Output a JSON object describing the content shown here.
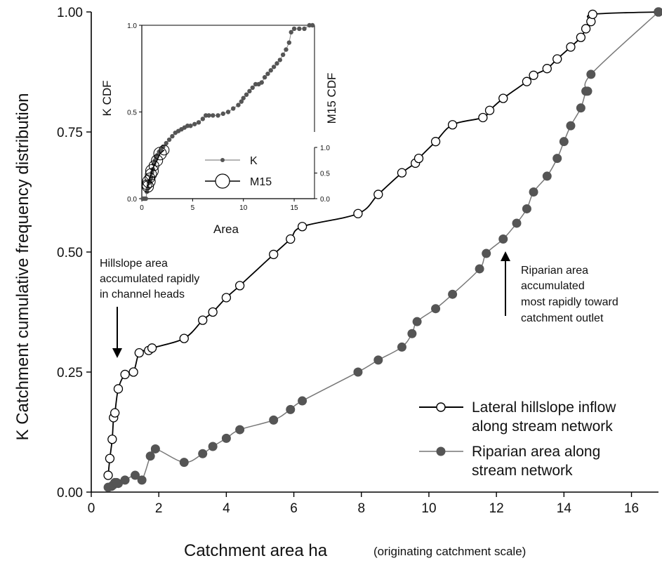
{
  "chart_data": {
    "type": "line",
    "xlabel": "Catchment area ha",
    "xlabel_note": "(originating catchment scale)",
    "ylabel": "K Catchment cumulative frequency distribution",
    "xlim": [
      0,
      16.8
    ],
    "ylim": [
      0,
      1
    ],
    "x_ticks": [
      "0",
      "2",
      "4",
      "6",
      "8",
      "10",
      "12",
      "14",
      "16"
    ],
    "y_ticks": [
      "0.00",
      "0.25",
      "0.50",
      "0.75",
      "1.00"
    ],
    "legend_position": "bottom-right",
    "series": [
      {
        "name": "Lateral hillslope inflow along stream network",
        "legend_lines": [
          "Lateral hillslope inflow",
          "along stream network"
        ],
        "marker": "open-circle",
        "color": "#000000",
        "x": [
          0.5,
          0.55,
          0.62,
          0.66,
          0.7,
          0.8,
          1.0,
          1.25,
          1.42,
          1.7,
          1.8,
          2.75,
          3.3,
          3.6,
          4.0,
          4.4,
          5.4,
          5.9,
          6.25,
          7.9,
          8.5,
          9.2,
          9.6,
          9.7,
          10.2,
          10.7,
          11.6,
          11.8,
          12.2,
          12.9,
          13.1,
          13.5,
          13.8,
          14.2,
          14.5,
          14.65,
          14.8
        ],
        "y": [
          0.035,
          0.07,
          0.11,
          0.155,
          0.165,
          0.215,
          0.245,
          0.25,
          0.29,
          0.295,
          0.3,
          0.32,
          0.358,
          0.375,
          0.405,
          0.43,
          0.495,
          0.527,
          0.553,
          0.58,
          0.62,
          0.665,
          0.685,
          0.695,
          0.73,
          0.765,
          0.78,
          0.795,
          0.82,
          0.855,
          0.868,
          0.882,
          0.902,
          0.927,
          0.947,
          0.965,
          0.98
        ],
        "extra_points": [
          [
            14.85,
            0.995
          ],
          [
            16.8,
            1.0
          ]
        ]
      },
      {
        "name": "Riparian area along stream network",
        "legend_lines": [
          "Riparian area along",
          "stream network"
        ],
        "marker": "filled-circle",
        "color": "#777777",
        "x": [
          0.5,
          0.6,
          0.65,
          0.7,
          0.75,
          0.8,
          1.0,
          1.3,
          1.5,
          1.75,
          1.9,
          2.75,
          3.3,
          3.6,
          4.0,
          4.4,
          5.4,
          5.9,
          6.25,
          7.9,
          8.5,
          9.2,
          9.5,
          9.65,
          10.2,
          10.7,
          11.5,
          11.7,
          12.2,
          12.6,
          12.9,
          13.1,
          13.5,
          13.8,
          14.0,
          14.2,
          14.5,
          14.65,
          14.7,
          14.8
        ],
        "y": [
          0.01,
          0.012,
          0.015,
          0.02,
          0.02,
          0.018,
          0.025,
          0.035,
          0.025,
          0.075,
          0.09,
          0.062,
          0.08,
          0.095,
          0.112,
          0.13,
          0.15,
          0.172,
          0.19,
          0.25,
          0.275,
          0.302,
          0.33,
          0.355,
          0.382,
          0.412,
          0.465,
          0.497,
          0.527,
          0.56,
          0.59,
          0.625,
          0.658,
          0.695,
          0.73,
          0.763,
          0.8,
          0.835,
          0.835,
          0.87
        ],
        "extra_points": [
          [
            16.8,
            1.0
          ]
        ]
      }
    ],
    "annotations": [
      {
        "lines": [
          "Hillslope area",
          "accumulated rapidly",
          "in channel heads"
        ],
        "arrow_to": [
          0.9,
          0.28
        ]
      },
      {
        "lines": [
          "Riparian area",
          "accumulated",
          "most rapidly toward",
          "catchment outlet"
        ],
        "arrow_to": [
          12.2,
          0.5
        ]
      }
    ],
    "inset": {
      "xlabel": "Area",
      "ylabel_left": "K CDF",
      "ylabel_right": "M15 CDF",
      "xlim": [
        0,
        17
      ],
      "ylim_left": [
        0,
        1.0
      ],
      "ylim_right": [
        0,
        1.0
      ],
      "x_ticks": [
        "0",
        "5",
        "10",
        "15"
      ],
      "y_ticks_left": [
        "0.0",
        "0.5",
        "1.0"
      ],
      "y_ticks_right": [
        "0.0",
        "0.5",
        "1.0"
      ],
      "legend_entries": [
        "K",
        "M15"
      ],
      "series": [
        {
          "name": "K",
          "marker": "filled-circle",
          "color": "#666666",
          "x": [
            0.1,
            0.25,
            0.4,
            0.5,
            0.6,
            0.7,
            0.8,
            0.9,
            1.0,
            1.1,
            1.2,
            1.3,
            1.4,
            1.5,
            1.7,
            1.9,
            2.1,
            2.4,
            2.7,
            3.0,
            3.3,
            3.6,
            3.9,
            4.2,
            4.5,
            4.8,
            5.2,
            5.6,
            6.0,
            6.3,
            6.6,
            7.0,
            7.5,
            8.0,
            8.5,
            9.0,
            9.5,
            9.8,
            10.0,
            10.3,
            10.6,
            10.9,
            11.2,
            11.5,
            11.8,
            12.1,
            12.4,
            12.7,
            13.0,
            13.3,
            13.6,
            13.9,
            14.2,
            14.5,
            14.7,
            15.0,
            15.5,
            16.0,
            16.5,
            16.8
          ],
          "y": [
            0.0,
            0.0,
            0.0,
            0.04,
            0.06,
            0.09,
            0.1,
            0.12,
            0.15,
            0.17,
            0.2,
            0.22,
            0.24,
            0.25,
            0.27,
            0.28,
            0.3,
            0.32,
            0.34,
            0.36,
            0.38,
            0.39,
            0.4,
            0.41,
            0.42,
            0.42,
            0.43,
            0.44,
            0.46,
            0.48,
            0.48,
            0.48,
            0.48,
            0.49,
            0.5,
            0.52,
            0.54,
            0.56,
            0.58,
            0.6,
            0.62,
            0.64,
            0.66,
            0.66,
            0.67,
            0.7,
            0.72,
            0.74,
            0.76,
            0.78,
            0.8,
            0.83,
            0.86,
            0.9,
            0.96,
            0.98,
            0.98,
            0.98,
            1.0,
            1.0
          ]
        },
        {
          "name": "M15",
          "marker": "open-circle",
          "color": "#000000",
          "x": [
            0.5,
            0.6,
            0.7,
            0.8,
            0.9,
            1.0,
            1.2,
            1.5,
            1.8,
            2.2
          ],
          "y": [
            0.08,
            0.07,
            0.1,
            0.12,
            0.14,
            0.16,
            0.19,
            0.22,
            0.26,
            0.28
          ]
        }
      ]
    }
  }
}
